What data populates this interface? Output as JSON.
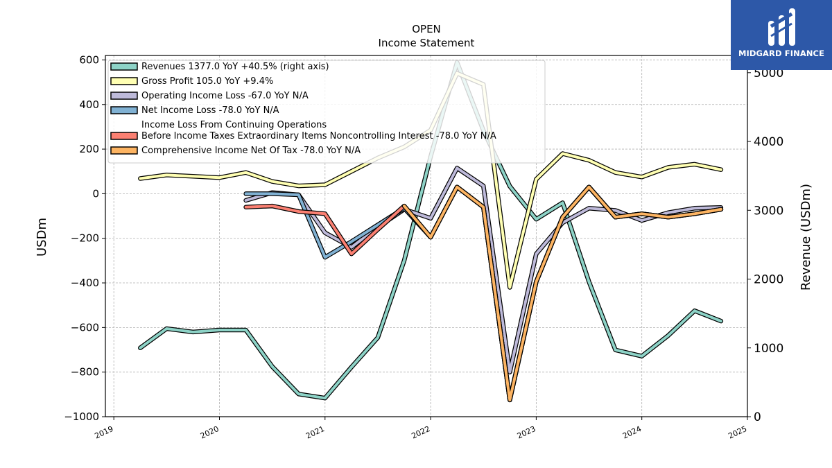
{
  "brand": {
    "name": "MIDGARD FINANCE",
    "bg_color": "#2d58a8"
  },
  "chart_data": {
    "type": "line",
    "title": "OPEN",
    "subtitle": "Income Statement",
    "ylabel": "USDm",
    "y2label": "Revenue (USDm)",
    "xlim": [
      2018.92,
      2025.0
    ],
    "ylim": [
      -1000,
      620
    ],
    "y2lim": [
      0,
      5250
    ],
    "x_ticks": [
      "2019",
      "2020",
      "2021",
      "2022",
      "2023",
      "2024",
      "2025"
    ],
    "y_ticks": [
      "600",
      "400",
      "200",
      "0",
      "−200",
      "−400",
      "−600",
      "−800",
      "−1000"
    ],
    "y2_ticks": [
      "5000",
      "4000",
      "3000",
      "2000",
      "1000",
      "0"
    ],
    "grid": true,
    "legend_position": "top-left",
    "series": [
      {
        "name": "Revenues  1377.0 YoY +40.5% (right axis)",
        "axis": "right",
        "color": "#8dd3c7",
        "x": [
          2019.25,
          2019.5,
          2019.75,
          2020.0,
          2020.25,
          2020.5,
          2020.75,
          2021.0,
          2021.25,
          2021.5,
          2021.75,
          2022.0,
          2022.25,
          2022.5,
          2022.75,
          2023.0,
          2023.25,
          2023.5,
          2023.75,
          2024.0,
          2024.25,
          2024.5,
          2024.75
        ],
        "values": [
          1000,
          1280,
          1230,
          1260,
          1260,
          730,
          330,
          270,
          720,
          1150,
          2270,
          3780,
          5150,
          4160,
          3350,
          2870,
          3110,
          1960,
          970,
          880,
          1180,
          1540,
          1390
        ]
      },
      {
        "name": "Gross Profit  105.0 YoY +9.4%",
        "axis": "left",
        "color": "#ffffb3",
        "x": [
          2019.25,
          2019.5,
          2019.75,
          2020.0,
          2020.25,
          2020.5,
          2020.75,
          2021.0,
          2021.25,
          2021.5,
          2021.75,
          2022.0,
          2022.25,
          2022.5,
          2022.75,
          2023.0,
          2023.25,
          2023.5,
          2023.75,
          2024.0,
          2024.25,
          2024.5,
          2024.75
        ],
        "values": [
          68,
          84,
          78,
          72,
          95,
          55,
          35,
          40,
          100,
          160,
          210,
          285,
          540,
          490,
          -420,
          65,
          180,
          150,
          95,
          75,
          118,
          132,
          108
        ]
      },
      {
        "name": "Operating Income Loss  -67.0 YoY N/A",
        "axis": "left",
        "color": "#bebada",
        "x": [
          2020.25,
          2020.5,
          2020.75,
          2021.0,
          2021.25,
          2021.5,
          2021.75,
          2022.0,
          2022.25,
          2022.5,
          2022.75,
          2023.0,
          2023.25,
          2023.5,
          2023.75,
          2024.0,
          2024.25,
          2024.5,
          2024.75
        ],
        "values": [
          -30,
          5,
          -5,
          -175,
          -240,
          -150,
          -70,
          -110,
          115,
          35,
          -800,
          -270,
          -130,
          -65,
          -75,
          -120,
          -85,
          -65,
          -62
        ]
      },
      {
        "name": "Net Income Loss  -78.0 YoY N/A",
        "axis": "left",
        "color": "#80b1d3",
        "x": [
          2020.25,
          2020.5,
          2020.75,
          2021.0,
          2021.25,
          2021.5,
          2021.75,
          2022.0,
          2022.25,
          2022.5,
          2022.75,
          2023.0,
          2023.25,
          2023.5,
          2023.75,
          2024.0,
          2024.25,
          2024.5,
          2024.75
        ],
        "values": [
          0,
          0,
          -5,
          -285,
          -215,
          -140,
          -65,
          -195,
          30,
          -60,
          -925,
          -395,
          -105,
          30,
          -105,
          -90,
          -105,
          -90,
          -70
        ]
      },
      {
        "name_lines": [
          "Income Loss From Continuing Operations",
          "Before Income Taxes Extraordinary Items Noncontrolling Interest  -78.0 YoY N/A"
        ],
        "axis": "left",
        "color": "#fb8072",
        "x": [
          2020.25,
          2020.5,
          2020.75,
          2021.0,
          2021.25,
          2021.5,
          2021.75,
          2022.0,
          2022.25,
          2022.5,
          2022.75,
          2023.0,
          2023.25,
          2023.5,
          2023.75,
          2024.0,
          2024.25,
          2024.5,
          2024.75
        ],
        "values": [
          -60,
          -55,
          -80,
          -90,
          -270,
          -160,
          -55,
          -195,
          30,
          -60,
          -925,
          -395,
          -105,
          30,
          -105,
          -90,
          -105,
          -90,
          -70
        ]
      },
      {
        "name": "Comprehensive Income Net Of Tax  -78.0 YoY N/A",
        "axis": "left",
        "color": "#fdb462",
        "x": [
          2021.75,
          2022.0,
          2022.25,
          2022.5,
          2022.75,
          2023.0,
          2023.25,
          2023.5,
          2023.75,
          2024.0,
          2024.25,
          2024.5,
          2024.75
        ],
        "values": [
          -55,
          -195,
          30,
          -60,
          -925,
          -395,
          -105,
          30,
          -105,
          -90,
          -105,
          -90,
          -70
        ]
      }
    ]
  }
}
